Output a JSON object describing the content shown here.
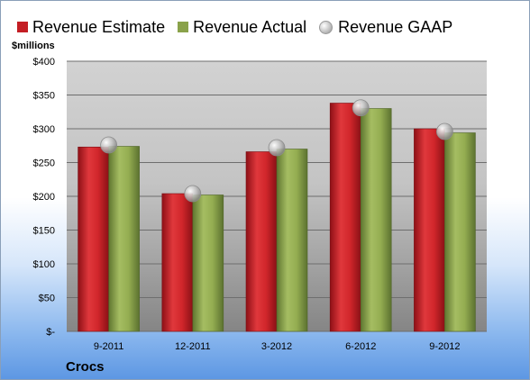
{
  "legend": {
    "estimate": "Revenue Estimate",
    "actual": "Revenue Actual",
    "gaap": "Revenue GAAP"
  },
  "units": "$millions",
  "company": "Crocs",
  "colors": {
    "estimate": "#c41e24",
    "actual": "#8aa24a",
    "gaap": "#b8b8b8"
  },
  "chart_data": {
    "type": "bar",
    "categories": [
      "9-2011",
      "12-2011",
      "3-2012",
      "6-2012",
      "9-2012"
    ],
    "series": [
      {
        "name": "Revenue Estimate",
        "values": [
          273,
          204,
          266,
          338,
          300
        ]
      },
      {
        "name": "Revenue Actual",
        "values": [
          274,
          202,
          270,
          330,
          294
        ]
      },
      {
        "name": "Revenue GAAP",
        "values": [
          276,
          204,
          272,
          331,
          296
        ]
      }
    ],
    "ylabel": "$millions",
    "ylim": [
      0,
      400
    ],
    "yticks": [
      0,
      50,
      100,
      150,
      200,
      250,
      300,
      350,
      400
    ],
    "ytick_labels": [
      "$-",
      "$50",
      "$100",
      "$150",
      "$200",
      "$250",
      "$300",
      "$350",
      "$400"
    ],
    "grid": true,
    "legend_position": "top"
  }
}
